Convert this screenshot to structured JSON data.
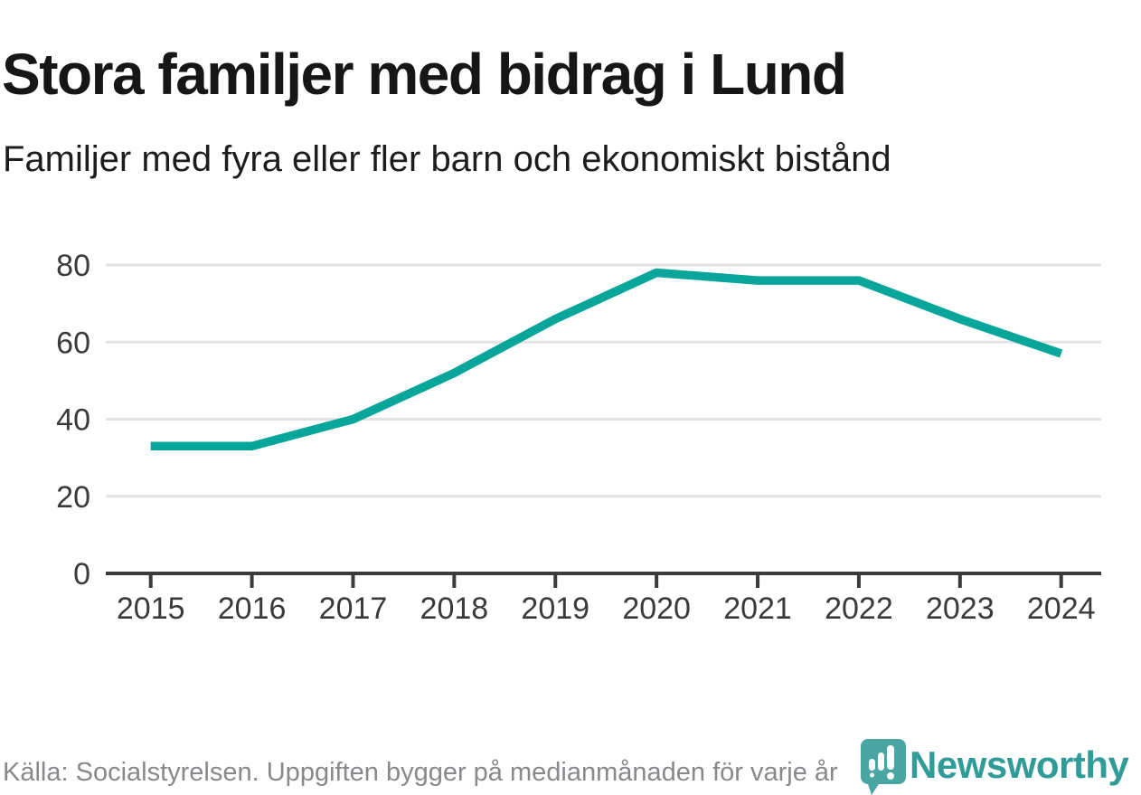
{
  "header": {
    "title": "Stora familjer med bidrag i Lund",
    "subtitle": "Familjer med fyra eller fler barn och ekonomiskt bistånd"
  },
  "footer": {
    "source": "Källa: Socialstyrelsen. Uppgiften bygger på medianmånaden för varje år",
    "brand": "Newsworthy"
  },
  "colors": {
    "line": "#08a59a",
    "grid": "#e3e3e3",
    "axis": "#3b3b3b",
    "tick_label": "#3a3a3a",
    "title_text": "#161616",
    "source_text": "#87898c",
    "logo_pin": "#4aa6a2",
    "logo_text": "#2f9c99"
  },
  "chart_data": {
    "type": "line",
    "title": "Stora familjer med bidrag i Lund",
    "subtitle": "Familjer med fyra eller fler barn och ekonomiskt bistånd",
    "categories": [
      "2015",
      "2016",
      "2017",
      "2018",
      "2019",
      "2020",
      "2021",
      "2022",
      "2023",
      "2024"
    ],
    "values": [
      33,
      33,
      40,
      52,
      66,
      78,
      76,
      76,
      66,
      57
    ],
    "series_name": "Familjer med fyra eller fler barn och ekonomiskt bistånd",
    "xlabel": "",
    "ylabel": "",
    "ylim": [
      0,
      80
    ],
    "yticks": [
      0,
      20,
      40,
      60,
      80
    ],
    "grid": "horizontal",
    "legend": "none",
    "source": "Källa: Socialstyrelsen. Uppgiften bygger på medianmånaden för varje år"
  }
}
